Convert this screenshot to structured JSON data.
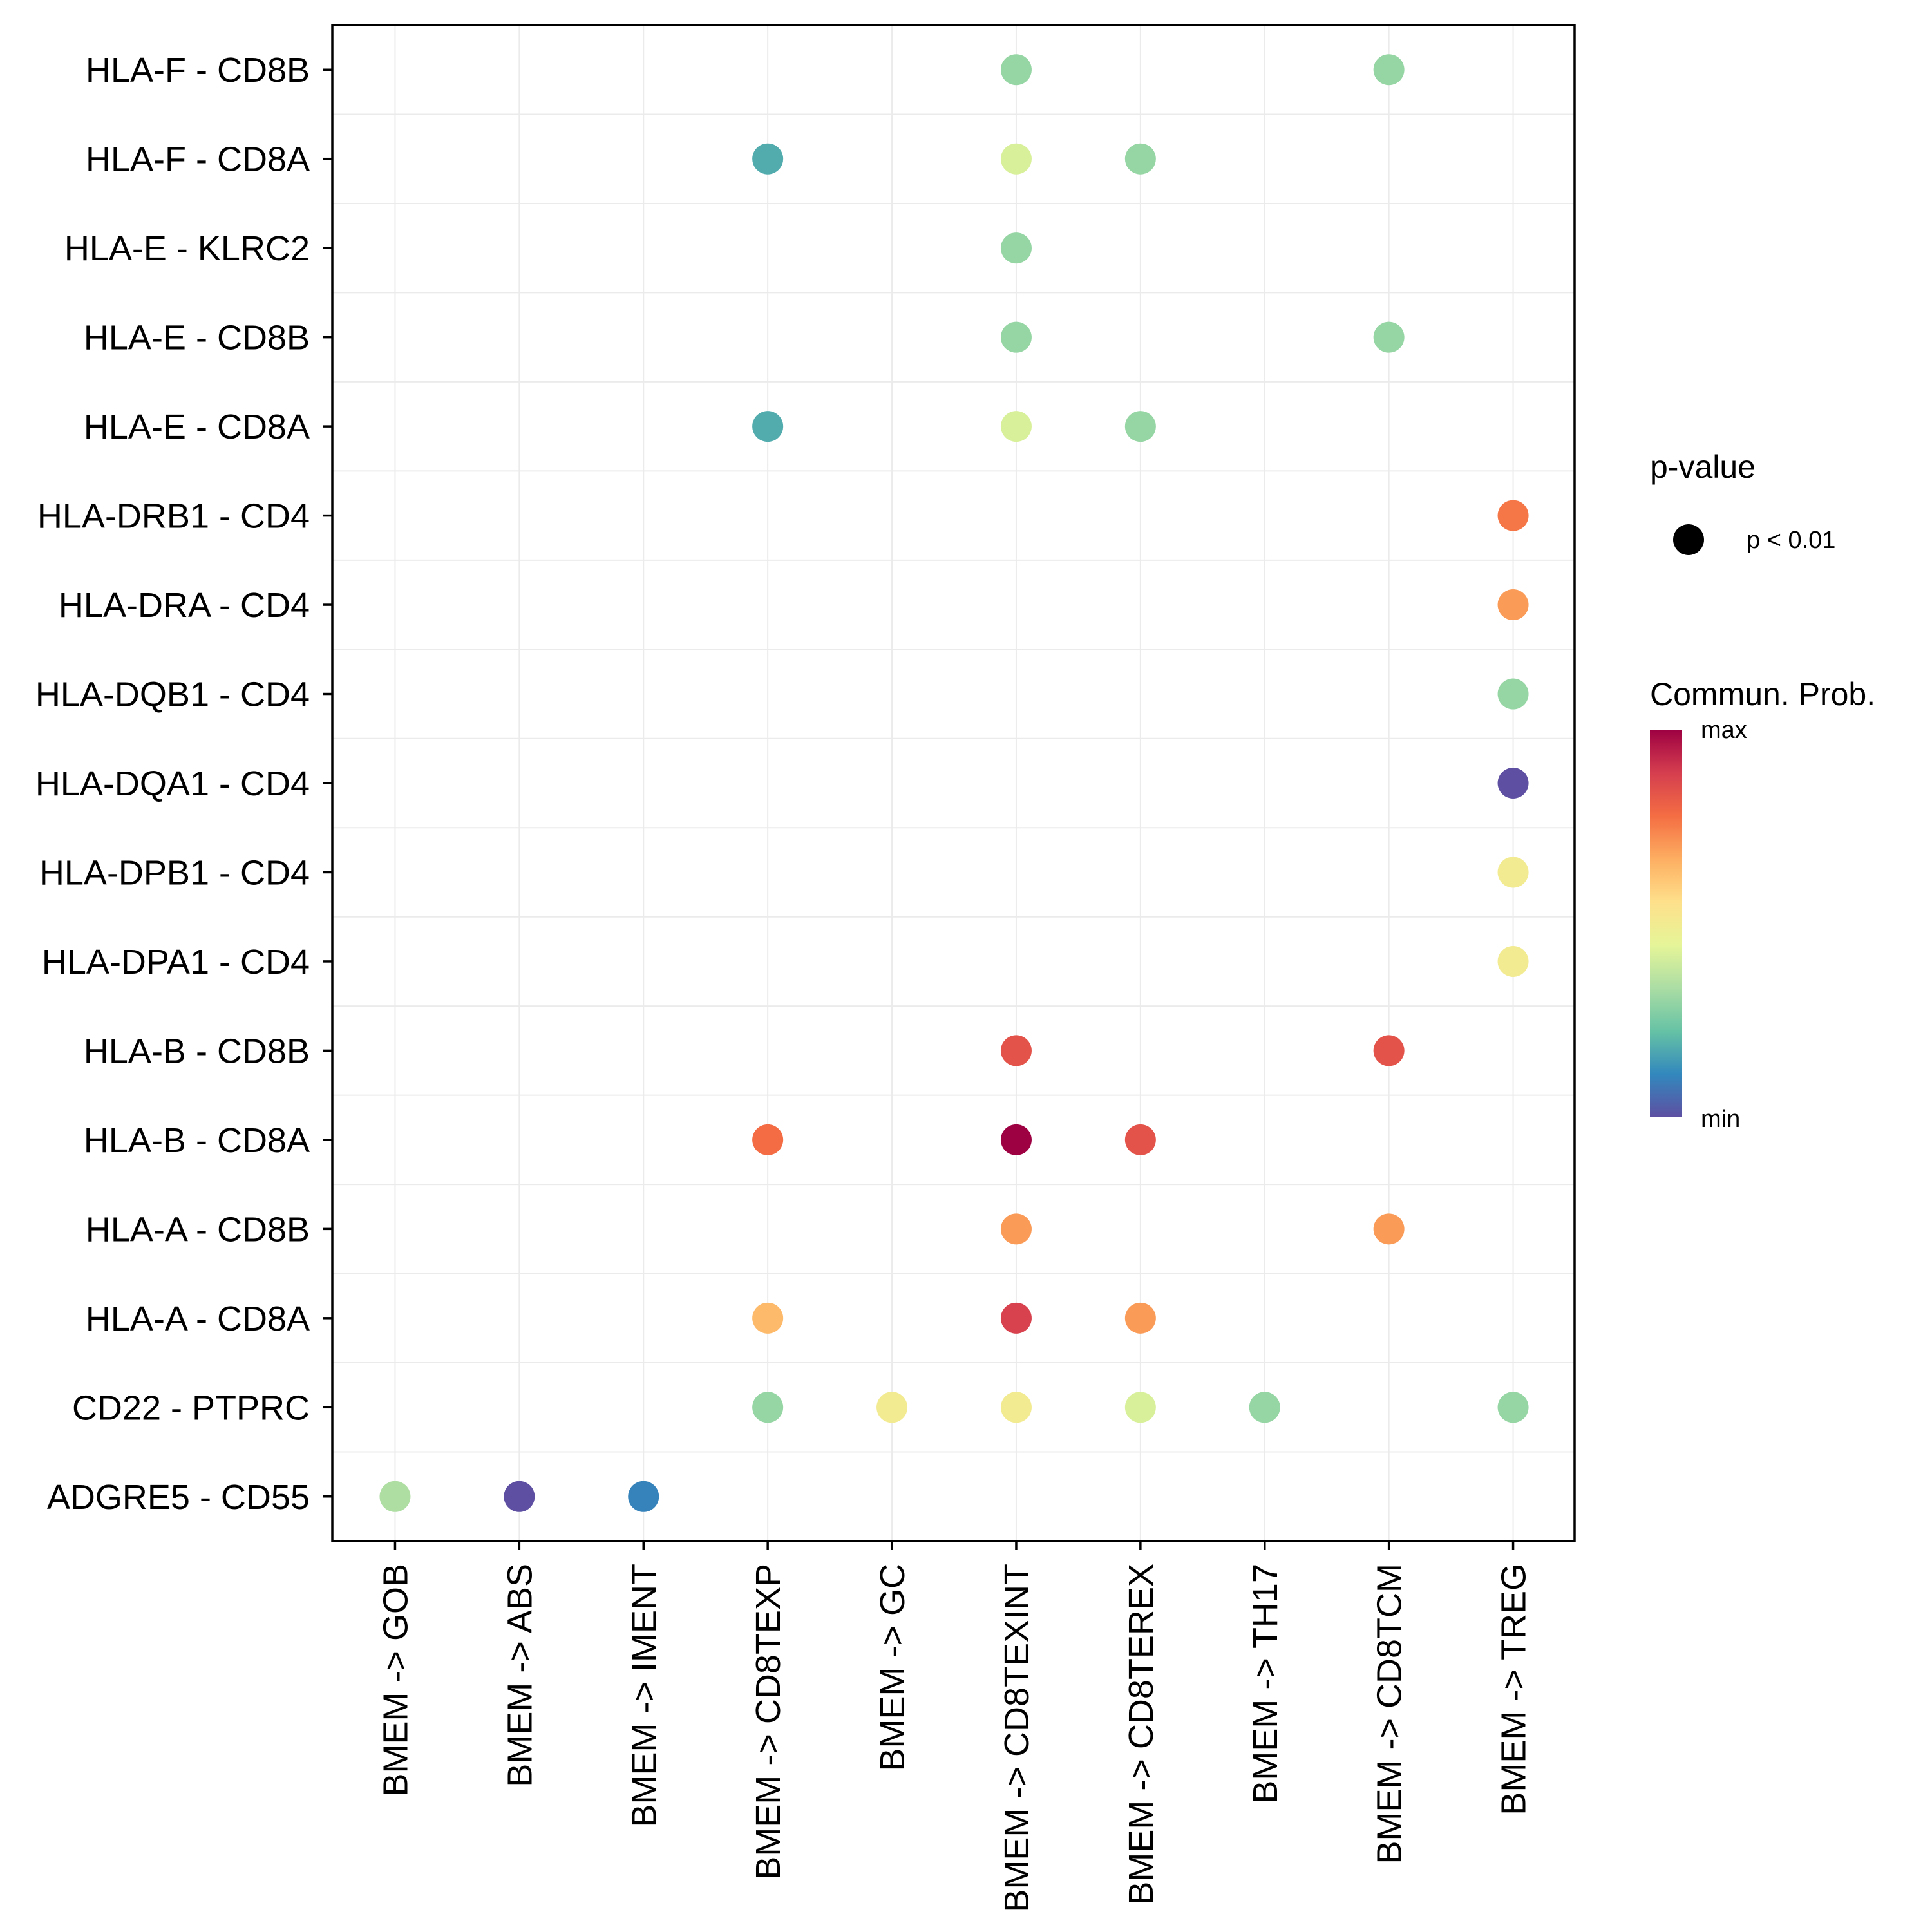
{
  "chart_data": {
    "type": "scatter",
    "subtype": "dot-plot (ligand-receptor communication)",
    "title": "",
    "xlabel": "",
    "ylabel": "",
    "x_categories": [
      "BMEM -> GOB",
      "BMEM -> ABS",
      "BMEM -> IMENT",
      "BMEM -> CD8TEXP",
      "BMEM -> GC",
      "BMEM -> CD8TEXINT",
      "BMEM -> CD8TEREX",
      "BMEM -> TH17",
      "BMEM -> CD8TCM",
      "BMEM -> TREG"
    ],
    "y_categories_top_to_bottom": [
      "HLA-F - CD8B",
      "HLA-F - CD8A",
      "HLA-E - KLRC2",
      "HLA-E - CD8B",
      "HLA-E - CD8A",
      "HLA-DRB1 - CD4",
      "HLA-DRA - CD4",
      "HLA-DQB1 - CD4",
      "HLA-DQA1 - CD4",
      "HLA-DPB1 - CD4",
      "HLA-DPA1 - CD4",
      "HLA-B - CD8B",
      "HLA-B - CD8A",
      "HLA-A - CD8B",
      "HLA-A - CD8A",
      "CD22 - PTPRC",
      "ADGRE5 - CD55"
    ],
    "value_scale": "relative communication probability, 0 = min, 1 = max (estimated from color)",
    "points": [
      {
        "y": "HLA-F - CD8B",
        "x": "BMEM -> CD8TEXINT",
        "value": 0.3,
        "p": "p < 0.01"
      },
      {
        "y": "HLA-F - CD8B",
        "x": "BMEM -> CD8TCM",
        "value": 0.3,
        "p": "p < 0.01"
      },
      {
        "y": "HLA-F - CD8A",
        "x": "BMEM -> CD8TEXP",
        "value": 0.18,
        "p": "p < 0.01"
      },
      {
        "y": "HLA-F - CD8A",
        "x": "BMEM -> CD8TEXINT",
        "value": 0.42,
        "p": "p < 0.01"
      },
      {
        "y": "HLA-F - CD8A",
        "x": "BMEM -> CD8TEREX",
        "value": 0.3,
        "p": "p < 0.01"
      },
      {
        "y": "HLA-E - KLRC2",
        "x": "BMEM -> CD8TEXINT",
        "value": 0.3,
        "p": "p < 0.01"
      },
      {
        "y": "HLA-E - CD8B",
        "x": "BMEM -> CD8TEXINT",
        "value": 0.3,
        "p": "p < 0.01"
      },
      {
        "y": "HLA-E - CD8B",
        "x": "BMEM -> CD8TCM",
        "value": 0.3,
        "p": "p < 0.01"
      },
      {
        "y": "HLA-E - CD8A",
        "x": "BMEM -> CD8TEXP",
        "value": 0.18,
        "p": "p < 0.01"
      },
      {
        "y": "HLA-E - CD8A",
        "x": "BMEM -> CD8TEXINT",
        "value": 0.42,
        "p": "p < 0.01"
      },
      {
        "y": "HLA-E - CD8A",
        "x": "BMEM -> CD8TEREX",
        "value": 0.3,
        "p": "p < 0.01"
      },
      {
        "y": "HLA-DRB1 - CD4",
        "x": "BMEM -> TREG",
        "value": 0.76,
        "p": "p < 0.01"
      },
      {
        "y": "HLA-DRA - CD4",
        "x": "BMEM -> TREG",
        "value": 0.7,
        "p": "p < 0.01"
      },
      {
        "y": "HLA-DQB1 - CD4",
        "x": "BMEM -> TREG",
        "value": 0.3,
        "p": "p < 0.01"
      },
      {
        "y": "HLA-DQA1 - CD4",
        "x": "BMEM -> TREG",
        "value": 0.0,
        "p": "p < 0.01"
      },
      {
        "y": "HLA-DPB1 - CD4",
        "x": "BMEM -> TREG",
        "value": 0.5,
        "p": "p < 0.01"
      },
      {
        "y": "HLA-DPA1 - CD4",
        "x": "BMEM -> TREG",
        "value": 0.5,
        "p": "p < 0.01"
      },
      {
        "y": "HLA-B - CD8B",
        "x": "BMEM -> CD8TEXINT",
        "value": 0.84,
        "p": "p < 0.01"
      },
      {
        "y": "HLA-B - CD8B",
        "x": "BMEM -> CD8TCM",
        "value": 0.84,
        "p": "p < 0.01"
      },
      {
        "y": "HLA-B - CD8A",
        "x": "BMEM -> CD8TEXP",
        "value": 0.78,
        "p": "p < 0.01"
      },
      {
        "y": "HLA-B - CD8A",
        "x": "BMEM -> CD8TEXINT",
        "value": 1.0,
        "p": "p < 0.01"
      },
      {
        "y": "HLA-B - CD8A",
        "x": "BMEM -> CD8TEREX",
        "value": 0.84,
        "p": "p < 0.01"
      },
      {
        "y": "HLA-A - CD8B",
        "x": "BMEM -> CD8TEXINT",
        "value": 0.7,
        "p": "p < 0.01"
      },
      {
        "y": "HLA-A - CD8B",
        "x": "BMEM -> CD8TCM",
        "value": 0.7,
        "p": "p < 0.01"
      },
      {
        "y": "HLA-A - CD8A",
        "x": "BMEM -> CD8TEXP",
        "value": 0.64,
        "p": "p < 0.01"
      },
      {
        "y": "HLA-A - CD8A",
        "x": "BMEM -> CD8TEXINT",
        "value": 0.88,
        "p": "p < 0.01"
      },
      {
        "y": "HLA-A - CD8A",
        "x": "BMEM -> CD8TEREX",
        "value": 0.7,
        "p": "p < 0.01"
      },
      {
        "y": "CD22 - PTPRC",
        "x": "BMEM -> CD8TEXP",
        "value": 0.3,
        "p": "p < 0.01"
      },
      {
        "y": "CD22 - PTPRC",
        "x": "BMEM -> GC",
        "value": 0.5,
        "p": "p < 0.01"
      },
      {
        "y": "CD22 - PTPRC",
        "x": "BMEM -> CD8TEXINT",
        "value": 0.5,
        "p": "p < 0.01"
      },
      {
        "y": "CD22 - PTPRC",
        "x": "BMEM -> CD8TEREX",
        "value": 0.42,
        "p": "p < 0.01"
      },
      {
        "y": "CD22 - PTPRC",
        "x": "BMEM -> TH17",
        "value": 0.3,
        "p": "p < 0.01"
      },
      {
        "y": "CD22 - PTPRC",
        "x": "BMEM -> TREG",
        "value": 0.3,
        "p": "p < 0.01"
      },
      {
        "y": "ADGRE5 - CD55",
        "x": "BMEM -> GOB",
        "value": 0.34,
        "p": "p < 0.01"
      },
      {
        "y": "ADGRE5 - CD55",
        "x": "BMEM -> ABS",
        "value": 0.0,
        "p": "p < 0.01"
      },
      {
        "y": "ADGRE5 - CD55",
        "x": "BMEM -> IMENT",
        "value": 0.1,
        "p": "p < 0.01"
      }
    ],
    "colorscale": {
      "name": "Spectral",
      "stops": [
        "#5E4FA2",
        "#3288BD",
        "#66C2A5",
        "#ABDDA4",
        "#E6F598",
        "#FEE08B",
        "#FDAE61",
        "#F46D43",
        "#D53E4F",
        "#9E0142"
      ]
    },
    "grid": true,
    "legend": {
      "position": "right",
      "size_title": "p-value",
      "size_entries": [
        "p < 0.01"
      ],
      "color_title": "Commun. Prob.",
      "color_max_label": "max",
      "color_min_label": "min"
    }
  }
}
